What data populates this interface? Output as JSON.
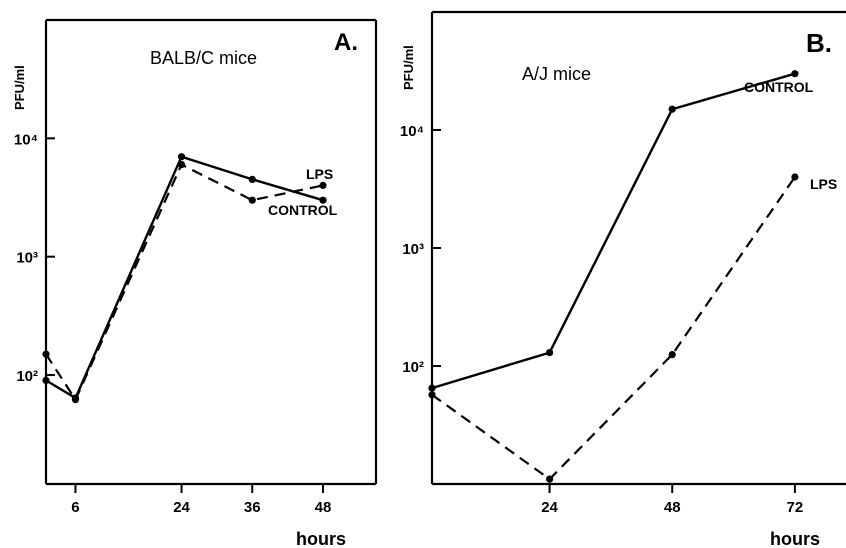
{
  "chart_data": [
    {
      "type": "line",
      "panel_label": "A.",
      "title": "BALB/C mice",
      "ylabel": "PFU/ml",
      "xlabel": "hours",
      "scale": "log",
      "x_ticks": [
        6,
        24,
        36,
        48
      ],
      "y_ticks": [
        {
          "value": 100,
          "label": "10²"
        },
        {
          "value": 1000,
          "label": "10³"
        },
        {
          "value": 10000,
          "label": "10⁴"
        }
      ],
      "xlim": [
        1,
        57
      ],
      "ylim": [
        12,
        100000
      ],
      "series": [
        {
          "name": "CONTROL",
          "style": "solid",
          "x": [
            1,
            6,
            24,
            36,
            48
          ],
          "y": [
            90,
            64,
            7000,
            4500,
            3000
          ]
        },
        {
          "name": "LPS",
          "style": "dashed",
          "x": [
            1,
            6,
            24,
            36,
            48
          ],
          "y": [
            150,
            62,
            6000,
            3000,
            4000
          ]
        }
      ]
    },
    {
      "type": "line",
      "panel_label": "B.",
      "title": "A/J mice",
      "ylabel": "PFU/ml",
      "xlabel": "hours",
      "scale": "log",
      "x_ticks": [
        24,
        48,
        72
      ],
      "y_ticks": [
        {
          "value": 100,
          "label": "10²"
        },
        {
          "value": 1000,
          "label": "10³"
        },
        {
          "value": 10000,
          "label": "10⁴"
        }
      ],
      "xlim": [
        1,
        82
      ],
      "ylim": [
        10,
        100000
      ],
      "series": [
        {
          "name": "CONTROL",
          "style": "solid",
          "x": [
            1,
            24,
            48,
            72
          ],
          "y": [
            65,
            130,
            15000,
            30000
          ]
        },
        {
          "name": "LPS",
          "style": "dashed",
          "x": [
            1,
            24,
            48,
            72
          ],
          "y": [
            57,
            11,
            125,
            4000
          ]
        }
      ]
    }
  ]
}
